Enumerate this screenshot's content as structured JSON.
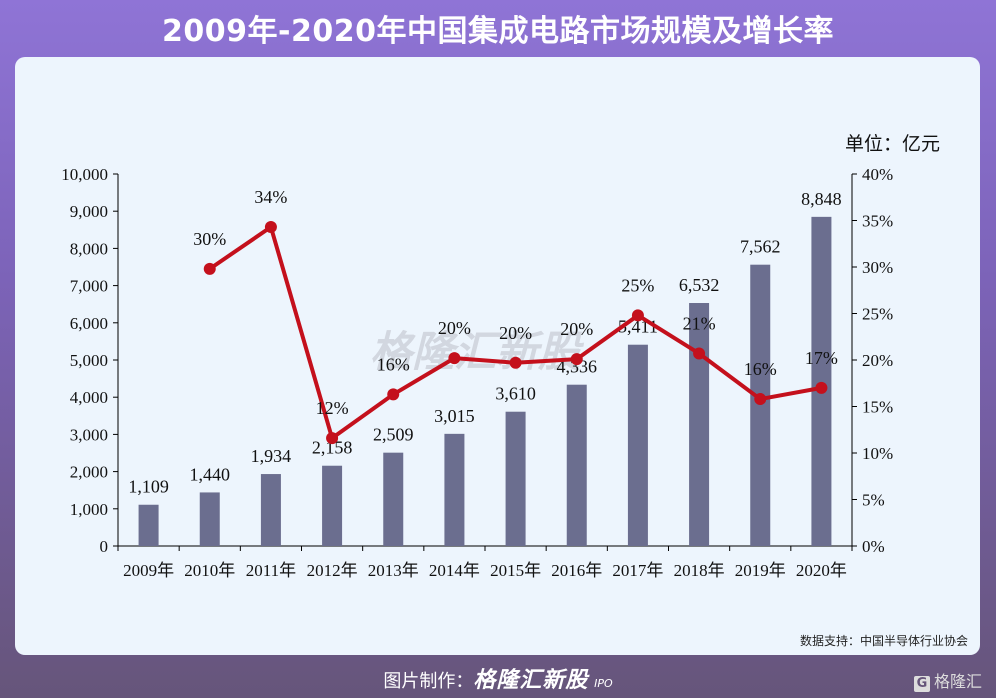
{
  "title": "2009年-2020年中国集成电路市场规模及增长率",
  "unit_label": "单位：亿元",
  "source": "数据支持：中国半导体行业协会",
  "footer": {
    "prefix": "图片制作：",
    "brand": "格隆汇新股",
    "brand_sub": "IPO",
    "logo_text": "格隆汇"
  },
  "watermark": "格隆汇新股",
  "colors": {
    "bar": "#6b6e8f",
    "line": "#c4101c",
    "card": "#edf5fd"
  },
  "chart_data": {
    "type": "bar+line",
    "categories": [
      "2009年",
      "2010年",
      "2011年",
      "2012年",
      "2013年",
      "2014年",
      "2015年",
      "2016年",
      "2017年",
      "2018年",
      "2019年",
      "2020年"
    ],
    "series": [
      {
        "type": "bar",
        "axis": "left",
        "values": [
          1109,
          1440,
          1934,
          2158,
          2509,
          3015,
          3610,
          4336,
          5411,
          6532,
          7562,
          8848
        ],
        "labels": [
          "1,109",
          "1,440",
          "1,934",
          "2,158",
          "2,509",
          "3,015",
          "3,610",
          "4,336",
          "5,411",
          "6,532",
          "7,562",
          "8,848"
        ]
      },
      {
        "type": "line",
        "axis": "right",
        "values": [
          null,
          29.8,
          34.3,
          11.6,
          16.3,
          20.2,
          19.7,
          20.1,
          24.8,
          20.7,
          15.8,
          17.0
        ],
        "labels": [
          null,
          "30%",
          "34%",
          "12%",
          "16%",
          "20%",
          "20%",
          "20%",
          "25%",
          "21%",
          "16%",
          "17%"
        ]
      }
    ],
    "y_left": {
      "range": [
        0,
        10000
      ],
      "ticks": [
        "0",
        "1,000",
        "2,000",
        "3,000",
        "4,000",
        "5,000",
        "6,000",
        "7,000",
        "8,000",
        "9,000",
        "10,000"
      ]
    },
    "y_right": {
      "range": [
        0,
        40
      ],
      "ticks": [
        "0%",
        "5%",
        "10%",
        "15%",
        "20%",
        "25%",
        "30%",
        "35%",
        "40%"
      ]
    },
    "grid": false
  }
}
